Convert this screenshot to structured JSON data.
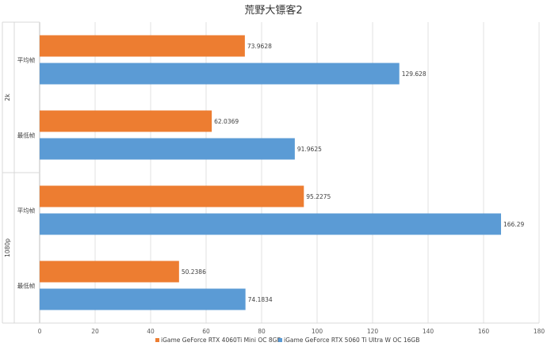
{
  "chart_data": {
    "type": "bar",
    "orientation": "horizontal",
    "title": "荒野大镖客2",
    "groups": [
      {
        "name": "2k",
        "categories": [
          "平均帧",
          "最低帧"
        ],
        "series_values": [
          [
            73.9628,
            129.628
          ],
          [
            62.0369,
            91.9625
          ]
        ]
      },
      {
        "name": "1080p",
        "categories": [
          "平均帧",
          "最低帧"
        ],
        "series_values": [
          [
            95.2275,
            166.29
          ],
          [
            50.2386,
            74.1834
          ]
        ]
      }
    ],
    "series": [
      {
        "name": "iGame GeForce RTX 4060Ti Mini OC 8GB",
        "color": "#ED7D31"
      },
      {
        "name": "iGame GeForce RTX 5060 Ti Ultra W OC 16GB",
        "color": "#5B9BD5"
      }
    ],
    "data_labels": [
      "73.9628",
      "129.628",
      "62.0369",
      "91.9625",
      "95.2275",
      "166.29",
      "50.2386",
      "74.1834"
    ],
    "xlim": [
      0,
      180
    ],
    "xticks": [
      0,
      20,
      40,
      60,
      80,
      100,
      120,
      140,
      160,
      180
    ],
    "grid": true,
    "legend_position": "bottom"
  }
}
